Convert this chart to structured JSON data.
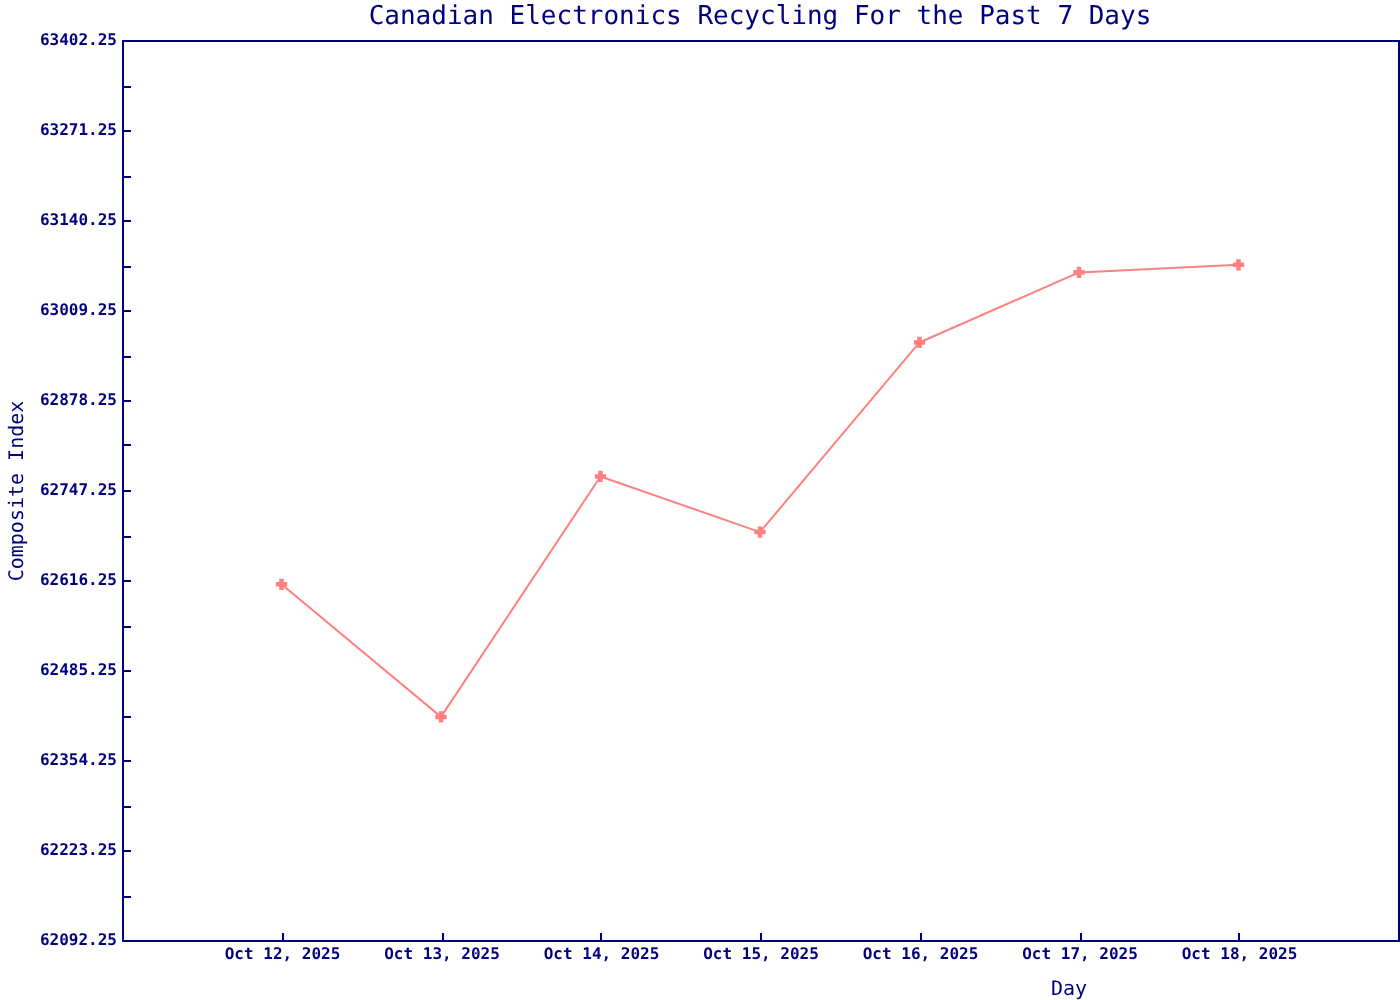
{
  "chart_data": {
    "type": "line",
    "title": "Canadian Electronics Recycling For the Past 7 Days",
    "xlabel": "Day",
    "ylabel": "Composite Index",
    "categories": [
      "Oct 12, 2025",
      "Oct 13, 2025",
      "Oct 14, 2025",
      "Oct 15, 2025",
      "Oct 16, 2025",
      "Oct 17, 2025",
      "Oct 18, 2025"
    ],
    "series": [
      {
        "color": "#ff8080",
        "values": [
          62610,
          62417,
          62767,
          62686,
          62962,
          63064,
          63075
        ]
      }
    ],
    "ylim": [
      62092.25,
      63402.25
    ],
    "yticks": [
      62092.25,
      {
        "value": 62157.75,
        "label": null
      },
      62223.25,
      {
        "value": 62288.75,
        "label": null
      },
      62354.25,
      {
        "value": 62419.75,
        "label": null
      },
      62485.25,
      {
        "value": 62550.75,
        "label": null
      },
      62616.25,
      {
        "value": 62681.75,
        "label": null
      },
      62747.25,
      {
        "value": 62812.75,
        "label": null
      },
      62878.25,
      {
        "value": 62943.75,
        "label": null
      },
      63009.25,
      {
        "value": 63074.75,
        "label": null
      },
      63140.25,
      {
        "value": 63205.75,
        "label": null
      },
      63271.25,
      {
        "value": 63336.75,
        "label": null
      },
      63402.25
    ],
    "marker": "cross",
    "line_style": "solid",
    "grid": false,
    "legend": false
  }
}
